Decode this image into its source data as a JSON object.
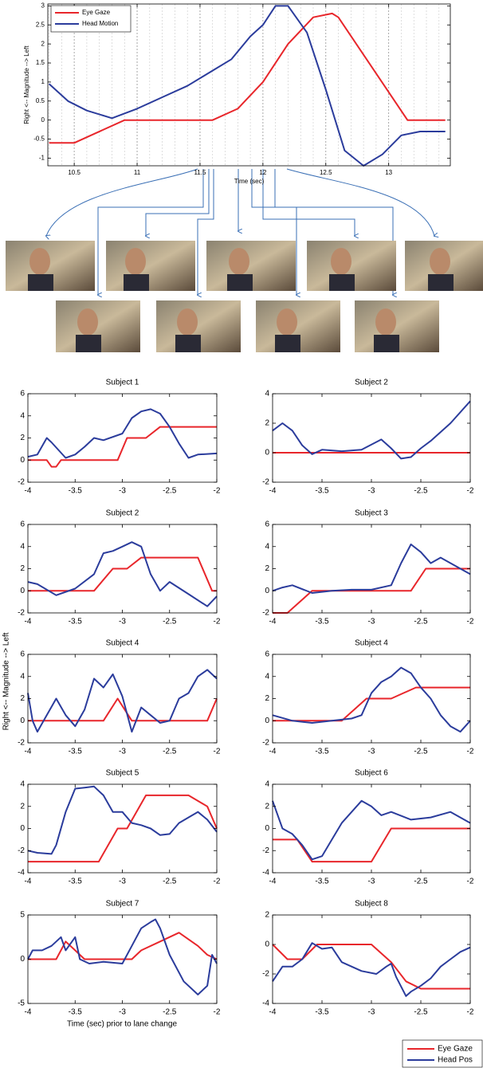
{
  "chart_data": [
    {
      "type": "line",
      "xlabel": "Time (sec)",
      "ylabel": "Right <-- Magnitude --> Left",
      "xlim": [
        10.29,
        13.49
      ],
      "ylim": [
        -1.2,
        3.05
      ],
      "xticks": [
        10.5,
        11,
        11.5,
        12,
        12.5,
        13
      ],
      "yticks": [
        -1,
        -0.5,
        0,
        0.5,
        1,
        1.5,
        2,
        2.5,
        3
      ],
      "grid": true,
      "legend": "upper left",
      "series": [
        {
          "name": "Eye Gaze",
          "color": "#e8262b",
          "x": [
            10.3,
            10.5,
            10.9,
            11.6,
            11.8,
            12.0,
            12.2,
            12.4,
            12.55,
            12.6,
            13.15,
            13.45
          ],
          "values": [
            -0.6,
            -0.6,
            0,
            0,
            0.3,
            1.0,
            2.0,
            2.7,
            2.8,
            2.7,
            0,
            0
          ]
        },
        {
          "name": "Head Motion",
          "color": "#2b3c9c",
          "x": [
            10.3,
            10.45,
            10.6,
            10.8,
            11.0,
            11.2,
            11.4,
            11.6,
            11.75,
            11.9,
            12.0,
            12.1,
            12.2,
            12.35,
            12.5,
            12.65,
            12.8,
            12.95,
            13.1,
            13.25,
            13.45
          ],
          "values": [
            0.95,
            0.5,
            0.25,
            0.05,
            0.3,
            0.6,
            0.9,
            1.3,
            1.6,
            2.2,
            2.5,
            3.0,
            3.0,
            2.3,
            0.8,
            -0.8,
            -1.2,
            -0.9,
            -0.4,
            -0.3,
            -0.3
          ]
        }
      ]
    },
    {
      "type": "line",
      "title": "Subject 1",
      "xlim": [
        -4,
        -2
      ],
      "ylim": [
        -2,
        6
      ],
      "xticks": [
        -4,
        -3.5,
        -3,
        -2.5,
        -2
      ],
      "yticks": [
        -2,
        0,
        2,
        4,
        6
      ],
      "series": [
        {
          "color": "#e8262b",
          "x": [
            -4,
            -3.8,
            -3.75,
            -3.7,
            -3.65,
            -3.5,
            -3.05,
            -2.95,
            -2.75,
            -2.6,
            -2.5,
            -2
          ],
          "values": [
            0,
            0,
            -0.6,
            -0.6,
            0,
            0,
            0,
            2,
            2,
            3,
            3,
            3
          ]
        },
        {
          "color": "#2b3c9c",
          "x": [
            -4,
            -3.9,
            -3.8,
            -3.75,
            -3.6,
            -3.5,
            -3.4,
            -3.3,
            -3.2,
            -3,
            -2.9,
            -2.8,
            -2.7,
            -2.6,
            -2.5,
            -2.4,
            -2.3,
            -2.2,
            -2
          ],
          "values": [
            0.3,
            0.5,
            2.0,
            1.6,
            0.2,
            0.5,
            1.2,
            2.0,
            1.8,
            2.4,
            3.8,
            4.4,
            4.6,
            4.2,
            3.0,
            1.5,
            0.2,
            0.5,
            0.6
          ]
        }
      ]
    },
    {
      "type": "line",
      "title": "Subject 2",
      "xlim": [
        -4,
        -2
      ],
      "ylim": [
        -2,
        4
      ],
      "xticks": [
        -4,
        -3.5,
        -3,
        -2.5,
        -2
      ],
      "yticks": [
        -2,
        0,
        2,
        4
      ],
      "series": [
        {
          "color": "#e8262b",
          "x": [
            -4,
            -2
          ],
          "values": [
            0,
            0
          ]
        },
        {
          "color": "#2b3c9c",
          "x": [
            -4,
            -3.9,
            -3.8,
            -3.7,
            -3.6,
            -3.5,
            -3.3,
            -3.1,
            -2.9,
            -2.8,
            -2.7,
            -2.6,
            -2.5,
            -2.4,
            -2.2,
            -2
          ],
          "values": [
            1.5,
            2.0,
            1.5,
            0.5,
            -0.1,
            0.2,
            0.1,
            0.2,
            0.9,
            0.3,
            -0.4,
            -0.3,
            0.3,
            0.8,
            2.0,
            3.5
          ]
        }
      ]
    },
    {
      "type": "line",
      "title": "Subject 2",
      "xlim": [
        -4,
        -2
      ],
      "ylim": [
        -2,
        6
      ],
      "xticks": [
        -4,
        -3.5,
        -3,
        -2.5,
        -2
      ],
      "yticks": [
        -2,
        0,
        2,
        4,
        6
      ],
      "series": [
        {
          "color": "#e8262b",
          "x": [
            -4,
            -3.3,
            -3.1,
            -2.95,
            -2.8,
            -2.2,
            -2.05,
            -2
          ],
          "values": [
            0,
            0,
            2,
            2,
            3,
            3,
            0,
            0
          ]
        },
        {
          "color": "#2b3c9c",
          "x": [
            -4,
            -3.9,
            -3.7,
            -3.5,
            -3.3,
            -3.2,
            -3.1,
            -3,
            -2.9,
            -2.8,
            -2.7,
            -2.6,
            -2.5,
            -2.3,
            -2.1,
            -2
          ],
          "values": [
            0.8,
            0.6,
            -0.4,
            0.2,
            1.5,
            3.4,
            3.6,
            4.0,
            4.4,
            4.0,
            1.5,
            0.0,
            0.8,
            -0.3,
            -1.4,
            -0.5
          ]
        }
      ]
    },
    {
      "type": "line",
      "title": "Subject 3",
      "xlim": [
        -4,
        -2
      ],
      "ylim": [
        -2,
        6
      ],
      "xticks": [
        -4,
        -3.5,
        -3,
        -2.5,
        -2
      ],
      "yticks": [
        -2,
        0,
        2,
        4,
        6
      ],
      "series": [
        {
          "color": "#e8262b",
          "x": [
            -4,
            -3.85,
            -3.6,
            -2.6,
            -2.45,
            -2
          ],
          "values": [
            -2,
            -2,
            0,
            0,
            2,
            2
          ]
        },
        {
          "color": "#2b3c9c",
          "x": [
            -4,
            -3.9,
            -3.8,
            -3.6,
            -3.4,
            -3.2,
            -3.0,
            -2.8,
            -2.7,
            -2.6,
            -2.5,
            -2.4,
            -2.3,
            -2.1,
            -2
          ],
          "values": [
            0,
            0.3,
            0.5,
            -0.2,
            0,
            0.1,
            0.1,
            0.5,
            2.5,
            4.2,
            3.5,
            2.5,
            3.0,
            2.0,
            1.5
          ]
        }
      ]
    },
    {
      "type": "line",
      "title": "Subject 4",
      "xlim": [
        -4,
        -2
      ],
      "ylim": [
        -2,
        6
      ],
      "xticks": [
        -4,
        -3.5,
        -3,
        -2.5,
        -2
      ],
      "yticks": [
        -2,
        0,
        2,
        4,
        6
      ],
      "series": [
        {
          "color": "#e8262b",
          "x": [
            -4,
            -3.2,
            -3.05,
            -2.9,
            -2.1,
            -2
          ],
          "values": [
            0,
            0,
            2,
            0,
            0,
            2
          ]
        },
        {
          "color": "#2b3c9c",
          "x": [
            -4,
            -3.95,
            -3.9,
            -3.8,
            -3.7,
            -3.6,
            -3.5,
            -3.4,
            -3.3,
            -3.2,
            -3.1,
            -3,
            -2.9,
            -2.8,
            -2.7,
            -2.6,
            -2.5,
            -2.4,
            -2.3,
            -2.2,
            -2.1,
            -2
          ],
          "values": [
            2.5,
            0,
            -1,
            0.5,
            2.0,
            0.5,
            -0.5,
            1.0,
            3.8,
            3.0,
            4.2,
            2.2,
            -1,
            1.2,
            0.5,
            -0.2,
            0,
            2.0,
            2.5,
            4,
            4.6,
            3.8
          ]
        }
      ]
    },
    {
      "type": "line",
      "title": "Subject 4",
      "xlim": [
        -4,
        -2
      ],
      "ylim": [
        -2,
        6
      ],
      "xticks": [
        -4,
        -3.5,
        -3,
        -2.5,
        -2
      ],
      "yticks": [
        -2,
        0,
        2,
        4,
        6
      ],
      "series": [
        {
          "color": "#e8262b",
          "x": [
            -4,
            -3.3,
            -3.05,
            -2.8,
            -2.55,
            -2
          ],
          "values": [
            0,
            0,
            2,
            2,
            3,
            3
          ]
        },
        {
          "color": "#2b3c9c",
          "x": [
            -4,
            -3.8,
            -3.6,
            -3.4,
            -3.2,
            -3.1,
            -3,
            -2.9,
            -2.8,
            -2.7,
            -2.6,
            -2.5,
            -2.4,
            -2.3,
            -2.2,
            -2.1,
            -2
          ],
          "values": [
            0.5,
            0,
            -0.2,
            0,
            0.2,
            0.5,
            2.5,
            3.5,
            4,
            4.8,
            4.3,
            3.0,
            2.0,
            0.5,
            -0.5,
            -1,
            0
          ]
        }
      ]
    },
    {
      "type": "line",
      "title": "Subject 5",
      "xlim": [
        -4,
        -2
      ],
      "ylim": [
        -4,
        4
      ],
      "xticks": [
        -4,
        -3.5,
        -3,
        -2.5,
        -2
      ],
      "yticks": [
        -4,
        -2,
        0,
        2,
        4
      ],
      "series": [
        {
          "color": "#e8262b",
          "x": [
            -4,
            -3.25,
            -3.05,
            -2.95,
            -2.75,
            -2.3,
            -2.1,
            -2
          ],
          "values": [
            -3,
            -3,
            0,
            0,
            3,
            3,
            2,
            0
          ]
        },
        {
          "color": "#2b3c9c",
          "x": [
            -4,
            -3.9,
            -3.75,
            -3.7,
            -3.6,
            -3.5,
            -3.4,
            -3.3,
            -3.2,
            -3.1,
            -3,
            -2.9,
            -2.8,
            -2.7,
            -2.6,
            -2.5,
            -2.4,
            -2.3,
            -2.2,
            -2.1,
            -2
          ],
          "values": [
            -2,
            -2.2,
            -2.3,
            -1.5,
            1.5,
            3.6,
            3.7,
            3.8,
            3.0,
            1.5,
            1.5,
            0.5,
            0.3,
            0,
            -0.6,
            -0.5,
            0.5,
            1,
            1.5,
            0.8,
            -0.3
          ]
        }
      ]
    },
    {
      "type": "line",
      "title": "Subject 6",
      "xlim": [
        -4,
        -2
      ],
      "ylim": [
        -4,
        4
      ],
      "xticks": [
        -4,
        -3.5,
        -3,
        -2.5,
        -2
      ],
      "yticks": [
        -4,
        -2,
        0,
        2,
        4
      ],
      "series": [
        {
          "color": "#e8262b",
          "x": [
            -4,
            -3.75,
            -3.6,
            -3.0,
            -2.8,
            -2
          ],
          "values": [
            -1,
            -1,
            -3,
            -3,
            0,
            0
          ]
        },
        {
          "color": "#2b3c9c",
          "x": [
            -4,
            -3.9,
            -3.8,
            -3.7,
            -3.6,
            -3.5,
            -3.4,
            -3.3,
            -3.2,
            -3.1,
            -3,
            -2.9,
            -2.8,
            -2.6,
            -2.4,
            -2.2,
            -2
          ],
          "values": [
            2.5,
            0,
            -0.5,
            -1.5,
            -2.8,
            -2.5,
            -1.0,
            0.5,
            1.5,
            2.5,
            2.0,
            1.2,
            1.5,
            0.8,
            1.0,
            1.5,
            0.5
          ]
        }
      ]
    },
    {
      "type": "line",
      "title": "Subject 7",
      "xlim": [
        -4,
        -2
      ],
      "ylim": [
        -5,
        5
      ],
      "xticks": [
        -4,
        -3.5,
        -3,
        -2.5,
        -2
      ],
      "yticks": [
        -5,
        0,
        5
      ],
      "series": [
        {
          "color": "#e8262b",
          "x": [
            -4,
            -3.7,
            -3.6,
            -3.5,
            -3.4,
            -3.2,
            -2.9,
            -2.8,
            -2.6,
            -2.4,
            -2.2,
            -2.1,
            -2
          ],
          "values": [
            0,
            0,
            2,
            1,
            0,
            0,
            0,
            1,
            2,
            3,
            1.5,
            0.5,
            0
          ]
        },
        {
          "color": "#2b3c9c",
          "x": [
            -4,
            -3.95,
            -3.85,
            -3.75,
            -3.65,
            -3.6,
            -3.5,
            -3.45,
            -3.35,
            -3.2,
            -3.0,
            -2.9,
            -2.8,
            -2.7,
            -2.65,
            -2.6,
            -2.5,
            -2.35,
            -2.2,
            -2.1,
            -2.05,
            -2
          ],
          "values": [
            0,
            1,
            1,
            1.5,
            2.5,
            1,
            2.5,
            0,
            -0.5,
            -0.3,
            -0.5,
            1.5,
            3.5,
            4.2,
            4.5,
            3.5,
            0.5,
            -2.5,
            -4,
            -3.0,
            0.5,
            -0.5
          ]
        }
      ]
    },
    {
      "type": "line",
      "title": "Subject 8",
      "xlim": [
        -4,
        -2
      ],
      "ylim": [
        -4,
        2
      ],
      "xticks": [
        -4,
        -3.5,
        -3,
        -2.5,
        -2
      ],
      "yticks": [
        -4,
        -2,
        0,
        2
      ],
      "series": [
        {
          "color": "#e8262b",
          "x": [
            -4,
            -3.85,
            -3.7,
            -3.55,
            -3.0,
            -2.8,
            -2.65,
            -2.5,
            -2
          ],
          "values": [
            0,
            -1,
            -1,
            0,
            0,
            -1.2,
            -2.5,
            -3,
            -3
          ]
        },
        {
          "color": "#2b3c9c",
          "x": [
            -4,
            -3.9,
            -3.8,
            -3.7,
            -3.6,
            -3.5,
            -3.4,
            -3.3,
            -3.1,
            -2.95,
            -2.85,
            -2.8,
            -2.75,
            -2.65,
            -2.6,
            -2.5,
            -2.4,
            -2.3,
            -2.2,
            -2.1,
            -2
          ],
          "values": [
            -2.5,
            -1.5,
            -1.5,
            -1,
            0.1,
            -0.3,
            -0.2,
            -1.2,
            -1.8,
            -2,
            -1.5,
            -1.3,
            -2.2,
            -3.5,
            -3.2,
            -2.8,
            -2.3,
            -1.5,
            -1,
            -0.5,
            -0.2
          ]
        }
      ]
    }
  ],
  "shared": {
    "ylabel": "Right <-- Magnitude --> Left",
    "xlabel": "Time (sec) prior to lane change",
    "legend": [
      {
        "name": "Eye Gaze",
        "color": "#e8262b"
      },
      {
        "name": "Head Pos",
        "color": "#2b3c9c"
      }
    ]
  }
}
